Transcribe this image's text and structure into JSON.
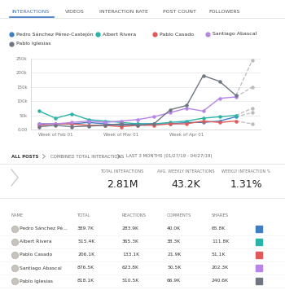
{
  "tabs": [
    "INTERACTIONS",
    "VIDEOS",
    "INTERACTION RATE",
    "POST COUNT",
    "FOLLOWERS"
  ],
  "chart_data": {
    "type": "line",
    "categories": [
      null,
      "Week of Feb 01",
      null,
      null,
      null,
      "Week of Mar 01",
      null,
      null,
      null,
      "Week of Apr 01",
      null,
      null,
      null,
      null
    ],
    "series": [
      {
        "name": "Pedro Sánchez Pérez-Castejón",
        "color": "#3f7fc1",
        "values": [
          20000,
          20000,
          20000,
          25000,
          20000,
          15000,
          20000,
          20000,
          20000,
          25000,
          25000,
          30000,
          45000,
          null
        ],
        "forecast": [
          null,
          null,
          null,
          null,
          null,
          null,
          null,
          null,
          null,
          null,
          null,
          null,
          45000,
          60000
        ]
      },
      {
        "name": "Albert Rivera",
        "color": "#2ab3a6",
        "values": [
          65000,
          40000,
          55000,
          35000,
          30000,
          25000,
          20000,
          20000,
          25000,
          30000,
          40000,
          45000,
          50000,
          null
        ],
        "forecast": [
          null,
          null,
          null,
          null,
          null,
          null,
          null,
          null,
          null,
          null,
          null,
          null,
          50000,
          75000
        ]
      },
      {
        "name": "Pablo Casado",
        "color": "#e05a5a",
        "values": [
          15000,
          20000,
          20000,
          15000,
          15000,
          10000,
          15000,
          15000,
          20000,
          20000,
          30000,
          25000,
          30000,
          null
        ],
        "forecast": [
          null,
          null,
          null,
          null,
          null,
          null,
          null,
          null,
          null,
          null,
          null,
          null,
          30000,
          20000
        ]
      },
      {
        "name": "Santiago Abascal",
        "color": "#b784e8",
        "values": [
          20000,
          20000,
          25000,
          30000,
          25000,
          30000,
          35000,
          45000,
          60000,
          75000,
          65000,
          110000,
          115000,
          null
        ],
        "forecast": [
          null,
          null,
          null,
          null,
          null,
          null,
          null,
          null,
          null,
          null,
          null,
          null,
          115000,
          150000
        ]
      },
      {
        "name": "Pablo Iglesias",
        "color": "#6e7681",
        "values": [
          10000,
          15000,
          10000,
          12000,
          15000,
          20000,
          15000,
          20000,
          70000,
          85000,
          190000,
          170000,
          120000,
          null
        ],
        "forecast": [
          null,
          null,
          null,
          null,
          null,
          null,
          null,
          null,
          null,
          null,
          null,
          null,
          120000,
          245000
        ]
      }
    ],
    "ylim": [
      0,
      250000
    ],
    "yticks": [
      {
        "value": 0,
        "label": "0.00"
      },
      {
        "value": 50000,
        "label": "50k"
      },
      {
        "value": 100000,
        "label": "100k"
      },
      {
        "value": 150000,
        "label": "150k"
      },
      {
        "value": 200000,
        "label": "200k"
      },
      {
        "value": 250000,
        "label": "250k"
      }
    ],
    "grid": true,
    "marker": "circle"
  },
  "breadcrumb": [
    "ALL POSTS",
    "COMBINED TOTAL INTERACTIONS",
    "LAST 3 MONTHS (01/27/19 - 04/27/19)"
  ],
  "summary": [
    {
      "label": "TOTAL INTERACTIONS",
      "value": "2.81M"
    },
    {
      "label": "AVG. WEEKLY INTERACTIONS",
      "value": "43.2K"
    },
    {
      "label": "WEEKLY INTERACTION %",
      "value": "1.31%"
    }
  ],
  "table": {
    "columns": [
      "NAME",
      "TOTAL",
      "REACTIONS",
      "COMMENTS",
      "SHARES"
    ],
    "rows": [
      {
        "cells": [
          "Pedro Sánchez Pé...",
          "389.7K",
          "283.9K",
          "40.0K",
          "65.8K"
        ],
        "color": "#3f7fc1"
      },
      {
        "cells": [
          "Albert Rivera",
          "515.4K",
          "365.3K",
          "38.3K",
          "111.8K"
        ],
        "color": "#2ab3a6"
      },
      {
        "cells": [
          "Pablo Casado",
          "206.1K",
          "133.1K",
          "21.9K",
          "51.1K"
        ],
        "color": "#e05a5a"
      },
      {
        "cells": [
          "Santiago Abascal",
          "876.5K",
          "623.8K",
          "50.5K",
          "202.3K"
        ],
        "color": "#b784e8"
      },
      {
        "cells": [
          "Pablo Iglesias",
          "818.1K",
          "510.5K",
          "66.9K",
          "240.6K"
        ],
        "color": "#6e7681"
      }
    ]
  }
}
